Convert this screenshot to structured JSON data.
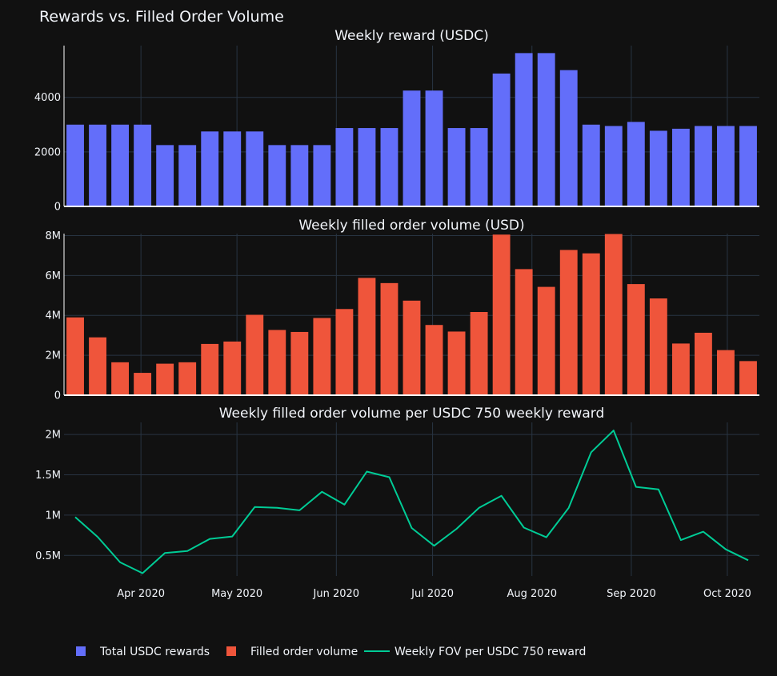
{
  "title": "Rewards vs. Filled Order Volume",
  "colors": {
    "background": "#111111",
    "grid": "#283442",
    "rewards": "#636efa",
    "volume": "#ef553b",
    "fov": "#00cc96",
    "text": "#f2f5fa"
  },
  "legend": [
    {
      "label": "Total USDC rewards",
      "kind": "square",
      "color": "#636efa"
    },
    {
      "label": "Filled order volume",
      "kind": "square",
      "color": "#ef553b"
    },
    {
      "label": "Weekly FOV per USDC 750 reward",
      "kind": "line",
      "color": "#00cc96"
    }
  ],
  "chart_data": [
    {
      "type": "bar",
      "title": "Weekly reward (USDC)",
      "ylim": [
        0,
        5900
      ],
      "yticks": [
        0,
        2000,
        4000
      ],
      "ytick_labels": [
        "0",
        "2000",
        "4000"
      ],
      "values": [
        3000,
        3000,
        3000,
        3000,
        2250,
        2250,
        2750,
        2750,
        2750,
        2250,
        2250,
        2250,
        2875,
        2875,
        2875,
        4250,
        4250,
        2875,
        2875,
        4875,
        5625,
        5625,
        5000,
        3000,
        2950,
        3100,
        2775,
        2850,
        2950,
        2950,
        2950
      ]
    },
    {
      "type": "bar",
      "title": "Weekly filled order volume (USD)",
      "ylim": [
        0,
        8100000
      ],
      "yticks": [
        0,
        2000000,
        4000000,
        6000000,
        8000000
      ],
      "ytick_labels": [
        "0",
        "2M",
        "4M",
        "6M",
        "8M"
      ],
      "values": [
        3900000,
        2900000,
        1650000,
        1120000,
        1580000,
        1650000,
        2570000,
        2690000,
        4030000,
        3270000,
        3170000,
        3870000,
        4320000,
        5880000,
        5620000,
        4740000,
        3520000,
        3190000,
        4170000,
        8050000,
        6320000,
        5430000,
        7280000,
        7110000,
        8080000,
        5570000,
        4850000,
        2590000,
        3130000,
        2260000,
        1710000
      ]
    },
    {
      "type": "line",
      "title": "Weekly filled order volume per USDC 750 weekly reward",
      "ylim": [
        245000,
        2150000
      ],
      "yticks": [
        500000,
        1000000,
        1500000,
        2000000
      ],
      "ytick_labels": [
        "0.5M",
        "1M",
        "1.5M",
        "2M"
      ],
      "values": [
        975000,
        730000,
        415000,
        280000,
        530000,
        555000,
        705000,
        735000,
        1100000,
        1090000,
        1060000,
        1290000,
        1130000,
        1540000,
        1470000,
        840000,
        620000,
        830000,
        1090000,
        1240000,
        845000,
        725000,
        1090000,
        1780000,
        2050000,
        1350000,
        1320000,
        690000,
        795000,
        575000,
        440000
      ]
    }
  ],
  "x_axis": {
    "first_week": "2020-03-09",
    "num_weeks": 31,
    "tick_labels": [
      "Apr 2020",
      "May 2020",
      "Jun 2020",
      "Jul 2020",
      "Aug 2020",
      "Sep 2020",
      "Oct 2020"
    ],
    "tick_week_positions": [
      3.43,
      7.71,
      12.14,
      16.43,
      20.86,
      25.29,
      29.57
    ]
  }
}
